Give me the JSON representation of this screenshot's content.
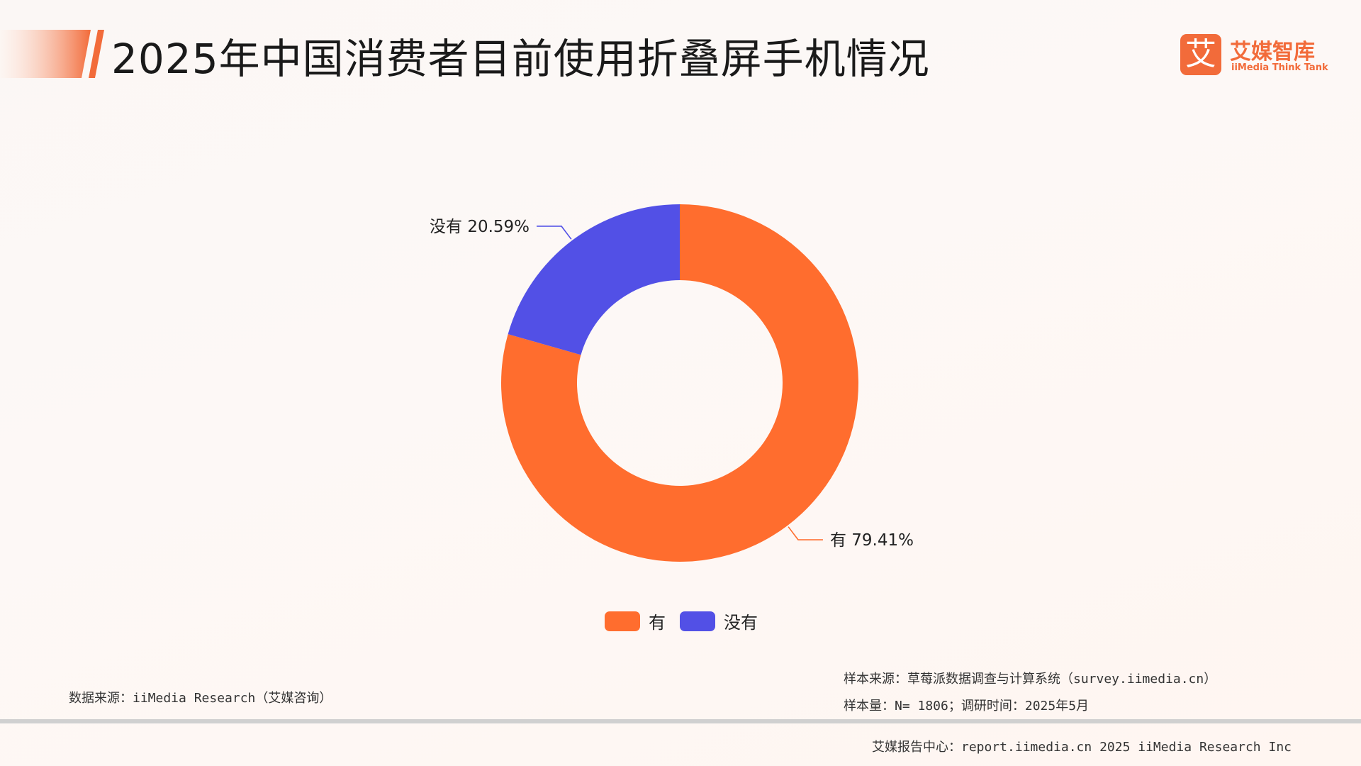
{
  "header": {
    "title": "2025年中国消费者目前使用折叠屏手机情况"
  },
  "logo": {
    "mark": "艾",
    "cn_name": "艾媒智库",
    "en_name": "iiMedia Think Tank"
  },
  "colors": {
    "accent": "#f26b3a",
    "you": "#ff6d2e",
    "meiyou": "#5250e6"
  },
  "chart_data": {
    "type": "pie",
    "donut": true,
    "title": "",
    "slices": [
      {
        "label": "有",
        "value": 79.41,
        "display": "有 79.41%",
        "color": "#ff6d2e"
      },
      {
        "label": "没有",
        "value": 20.59,
        "display": "没有 20.59%",
        "color": "#5250e6"
      }
    ],
    "legend": {
      "position": "bottom-center",
      "items": [
        "有",
        "没有"
      ]
    }
  },
  "footer": {
    "source": "数据来源：iiMedia Research（艾媒咨询）",
    "sample_source": "样本来源：草莓派数据调查与计算系统（survey.iimedia.cn）",
    "sample_size": "样本量：N= 1806；调研时间：2025年5月",
    "copyright": "艾媒报告中心：report.iimedia.cn  2025 iiMedia Research Inc"
  }
}
